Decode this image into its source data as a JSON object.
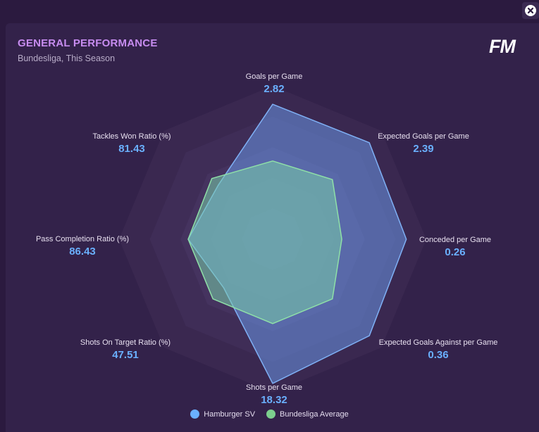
{
  "header": {
    "title": "GENERAL PERFORMANCE",
    "subtitle": "Bundesliga, This Season",
    "logo_text": "FM"
  },
  "colors": {
    "primary": "#6ab0ff",
    "average": "#7ccf8e",
    "value_text": "#6ab0ff"
  },
  "chart_data": {
    "type": "radar",
    "title": "GENERAL PERFORMANCE",
    "subtitle": "Bundesliga, This Season",
    "axes": [
      "Goals per Game",
      "Expected Goals per Game",
      "Conceded per Game",
      "Expected Goals Against per Game",
      "Shots per Game",
      "Shots On Target Ratio (%)",
      "Pass Completion Ratio (%)",
      "Tackles Won Ratio (%)"
    ],
    "value_labels": [
      "2.82",
      "2.39",
      "0.26",
      "0.36",
      "18.32",
      "47.51",
      "86.43",
      "81.43"
    ],
    "rings": 5,
    "series": [
      {
        "name": "Hamburger SV",
        "values": [
          0.88,
          0.89,
          0.87,
          0.89,
          0.94,
          0.45,
          0.55,
          0.5
        ]
      },
      {
        "name": "Bundesliga Average",
        "values": [
          0.51,
          0.55,
          0.45,
          0.55,
          0.55,
          0.55,
          0.55,
          0.56
        ]
      }
    ],
    "normalized_range": [
      0,
      1
    ],
    "legend": "bottom-center"
  }
}
